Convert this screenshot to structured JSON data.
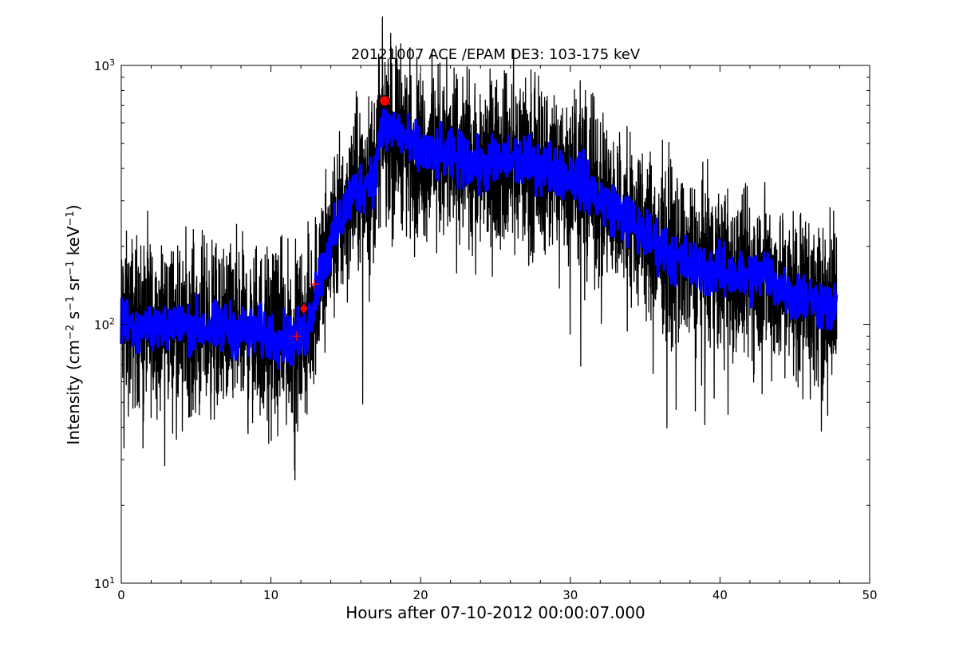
{
  "chart_data": {
    "type": "line",
    "title": "20121007 ACE /EPAM DE3: 103-175 keV",
    "xlabel": "Hours after 07-10-2012 00:00:07.000",
    "ylabel": {
      "parts": [
        "Intensity (cm",
        "−2",
        " s",
        "−1",
        " sr",
        "−1",
        " keV",
        "−1",
        ")"
      ]
    },
    "xlim": [
      0,
      50
    ],
    "ylim": [
      10,
      1000
    ],
    "yscale": "log",
    "grid": false,
    "x_ticks": [
      "0",
      "10",
      "20",
      "30",
      "40",
      "50"
    ],
    "y_ticks": [
      {
        "base": "10",
        "exp": "1"
      },
      {
        "base": "10",
        "exp": "2"
      },
      {
        "base": "10",
        "exp": "3"
      }
    ],
    "colors": {
      "raw": "#000000",
      "smoothed": "#0000ff",
      "markers": "#ff0000"
    },
    "series": [
      {
        "style": "raw-noisy",
        "x": [
          0,
          1,
          2,
          3,
          4,
          5,
          6,
          7,
          8,
          9,
          10,
          11,
          11.8,
          12.3,
          12.7,
          13,
          13.5,
          14,
          14.5,
          15,
          15.5,
          16,
          16.5,
          17,
          17.2,
          17.5,
          18,
          18.5,
          19,
          19.5,
          20,
          21,
          22,
          23,
          24,
          25,
          26,
          27,
          28,
          29,
          30,
          31,
          32,
          33,
          34,
          35,
          36,
          37,
          38,
          39,
          40,
          41,
          42,
          43,
          44,
          45,
          46,
          47,
          47.8
        ],
        "values": [
          100,
          102,
          98,
          100,
          97,
          99,
          95,
          97,
          94,
          92,
          90,
          88,
          87,
          92,
          110,
          135,
          170,
          200,
          240,
          280,
          320,
          340,
          360,
          380,
          540,
          560,
          580,
          560,
          520,
          470,
          460,
          450,
          440,
          430,
          400,
          420,
          430,
          420,
          410,
          400,
          380,
          350,
          300,
          280,
          250,
          220,
          200,
          180,
          170,
          165,
          160,
          155,
          150,
          160,
          140,
          130,
          125,
          120,
          115
        ]
      },
      {
        "style": "smoothed",
        "x": [
          0,
          1,
          2,
          3,
          4,
          5,
          6,
          7,
          8,
          9,
          10,
          11,
          11.8,
          12.3,
          12.7,
          13,
          13.5,
          14,
          14.5,
          15,
          15.5,
          16,
          16.5,
          17,
          17.2,
          17.5,
          18,
          18.5,
          19,
          19.5,
          20,
          21,
          22,
          23,
          24,
          25,
          26,
          27,
          28,
          29,
          30,
          31,
          32,
          33,
          34,
          35,
          36,
          37,
          38,
          39,
          40,
          41,
          42,
          43,
          44,
          45,
          46,
          47,
          47.8
        ],
        "values": [
          100,
          102,
          98,
          100,
          97,
          99,
          95,
          97,
          94,
          92,
          90,
          88,
          87,
          92,
          110,
          135,
          170,
          200,
          240,
          280,
          320,
          340,
          360,
          380,
          540,
          560,
          580,
          560,
          520,
          470,
          460,
          450,
          440,
          430,
          400,
          420,
          430,
          420,
          410,
          400,
          380,
          350,
          300,
          280,
          250,
          220,
          200,
          180,
          170,
          165,
          160,
          155,
          150,
          160,
          140,
          130,
          125,
          120,
          115
        ]
      }
    ],
    "markers": [
      {
        "shape": "circle",
        "x": 17.6,
        "y": 730
      },
      {
        "shape": "diamond",
        "x": 12.2,
        "y": 115
      },
      {
        "shape": "plus",
        "x": 11.7,
        "y": 90
      },
      {
        "shape": "plus",
        "x": 12.9,
        "y": 143
      }
    ]
  }
}
